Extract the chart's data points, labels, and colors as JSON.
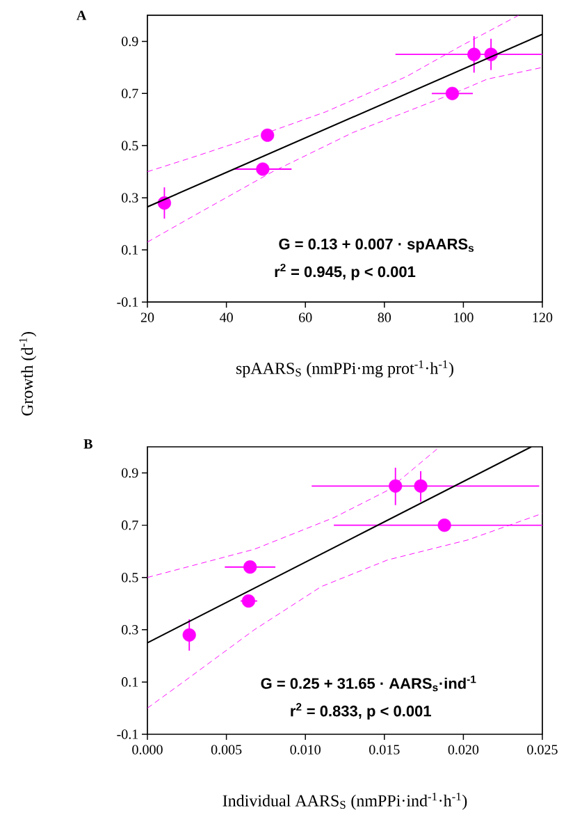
{
  "chart_data": [
    {
      "type": "scatter",
      "title": "A",
      "xlabel": "spAARS$_{S}$ (nmPPi·mg prot$^{-1}$·h$^{-1}$)",
      "ylabel": "Growth (d$^{-1}$)",
      "annotations": [
        "G = 0.13 + 0.007 · spAARS$_{s}$",
        "r$^{2}$ = 0.945, p < 0.001"
      ],
      "xlim": [
        20,
        120
      ],
      "ylim": [
        -0.1,
        1.0
      ],
      "xticks": [
        20,
        40,
        60,
        80,
        100,
        120
      ],
      "yticks": [
        -0.1,
        0.1,
        0.3,
        0.5,
        0.7,
        0.9
      ],
      "marker": "circle",
      "series": [
        {
          "color": "#ff00ff",
          "x": [
            24.3,
            49.2,
            50.4,
            97.2,
            102.7,
            107.0
          ],
          "values": [
            0.28,
            0.41,
            0.54,
            0.7,
            0.85,
            0.85
          ],
          "errors": [
            [
              0.22,
              0.34
            ],
            null,
            null,
            null,
            [
              0.78,
              0.92
            ],
            [
              0.79,
              0.91
            ]
          ],
          "xerrors": [
            null,
            [
              42.1,
              56.5
            ],
            null,
            [
              92.0,
              102.4
            ],
            [
              82.8,
              120.0
            ],
            null
          ]
        },
        {
          "type": "line",
          "color": "#000000",
          "marker": "none",
          "line_style": "solid",
          "x": [
            20,
            120
          ],
          "values": [
            0.265,
            0.927
          ]
        },
        {
          "type": "line",
          "color": "#ff00ff",
          "marker": "none",
          "line_style": "dashed",
          "x": [
            20,
            31.4,
            50.4,
            65.2,
            85.6,
            99.1,
            114
          ],
          "values": [
            0.4,
            0.455,
            0.55,
            0.63,
            0.765,
            0.88,
            1.0
          ]
        },
        {
          "type": "line",
          "color": "#ff00ff",
          "marker": "none",
          "line_style": "dashed",
          "x": [
            20,
            31.4,
            51.7,
            72,
            85.6,
            99.1,
            106,
            120
          ],
          "values": [
            0.13,
            0.228,
            0.4,
            0.55,
            0.63,
            0.71,
            0.755,
            0.8
          ]
        }
      ]
    },
    {
      "type": "scatter",
      "title": "B",
      "xlabel": "Individual AARS$_{S}$ (nmPPi·ind$^{-1}$·h$^{-1}$)",
      "annotations": [
        "G = 0.25 + 31.65 · AARS$_{s}$·ind$^{-1}$",
        "r$^{2}$ = 0.833, p < 0.001"
      ],
      "xlim": [
        0,
        0.025
      ],
      "ylim": [
        -0.1,
        1.0
      ],
      "xticks": [
        {
          "value": 0,
          "label": "0.000"
        },
        {
          "value": 0.005,
          "label": "0.005"
        },
        {
          "value": 0.01,
          "label": "0.010"
        },
        {
          "value": 0.015,
          "label": "0.015"
        },
        {
          "value": 0.02,
          "label": "0.020"
        },
        {
          "value": 0.025,
          "label": "0.025"
        }
      ],
      "yticks": [
        -0.1,
        0.1,
        0.3,
        0.5,
        0.7,
        0.9
      ],
      "marker": "circle",
      "series": [
        {
          "color": "#ff00ff",
          "x": [
            0.00265,
            0.0064,
            0.0065,
            0.0188,
            0.0157,
            0.0173
          ],
          "values": [
            0.28,
            0.41,
            0.54,
            0.7,
            0.85,
            0.85
          ],
          "errors": [
            [
              0.22,
              0.34
            ],
            null,
            null,
            null,
            [
              0.777,
              0.92
            ],
            [
              0.79,
              0.907
            ]
          ],
          "xerrors": [
            null,
            [
              0.0059,
              0.00695
            ],
            [
              0.0049,
              0.0081
            ],
            [
              0.0118,
              0.025
            ],
            [
              0.0104,
              0.0248
            ],
            null
          ]
        },
        {
          "type": "line",
          "color": "#000000",
          "marker": "none",
          "line_style": "solid",
          "x": [
            0,
            0.0243
          ],
          "values": [
            0.25,
            1.0
          ]
        },
        {
          "type": "line",
          "color": "#ff00ff",
          "marker": "none",
          "line_style": "dashed",
          "x": [
            0,
            0.00677,
            0.01184,
            0.0152,
            0.0185
          ],
          "values": [
            0.5,
            0.608,
            0.73,
            0.833,
            1.0
          ]
        },
        {
          "type": "line",
          "color": "#ff00ff",
          "marker": "none",
          "line_style": "dashed",
          "x": [
            0,
            0.00286,
            0.00677,
            0.011,
            0.0152,
            0.0203,
            0.025
          ],
          "values": [
            0.0,
            0.126,
            0.3,
            0.465,
            0.567,
            0.644,
            0.745
          ]
        }
      ]
    }
  ]
}
